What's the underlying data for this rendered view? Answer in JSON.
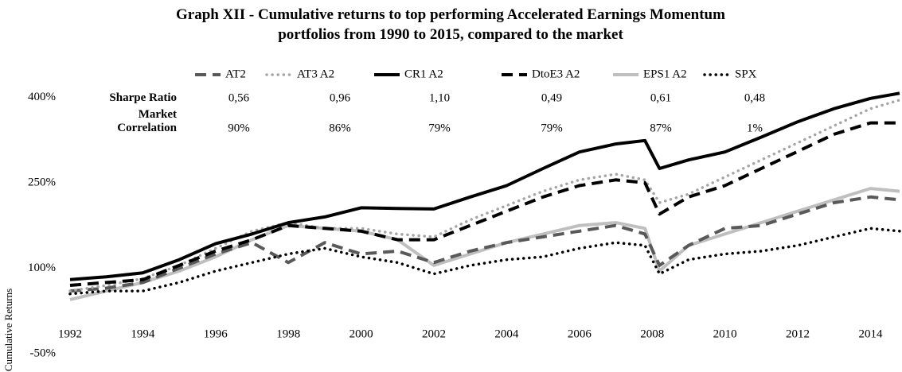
{
  "chart_data": {
    "type": "line",
    "title": "Graph XII - Cumulative returns to top performing Accelerated Earnings Momentum portfolios from 1990 to 2015, compared to the market",
    "y_label": "Cumulative Returns",
    "x": [
      1992,
      1993,
      1994,
      1995,
      1996,
      1997,
      1998,
      1999,
      2000,
      2001,
      2002,
      2003,
      2004,
      2005,
      2006,
      2007,
      2007.8,
      2008.2,
      2009,
      2010,
      2011,
      2012,
      2013,
      2014,
      2014.8
    ],
    "xlim": [
      1992,
      2014.8
    ],
    "xticks": [
      1992,
      1994,
      1996,
      1998,
      2000,
      2002,
      2004,
      2006,
      2008,
      2010,
      2012,
      2014
    ],
    "ylim": [
      -50,
      420
    ],
    "yticks": [
      {
        "value": -50,
        "label": "-50%"
      },
      {
        "value": 100,
        "label": "100%"
      },
      {
        "value": 250,
        "label": "250%"
      },
      {
        "value": 400,
        "label": "400%"
      }
    ],
    "grid": false,
    "series": [
      {
        "name": "AT2",
        "color": "#595959",
        "line_style": "dashed",
        "values": [
          60,
          65,
          75,
          100,
          125,
          145,
          110,
          145,
          125,
          130,
          110,
          130,
          145,
          155,
          165,
          175,
          160,
          105,
          140,
          170,
          175,
          195,
          215,
          225,
          220
        ]
      },
      {
        "name": "AT3 A2",
        "color": "#a6a6a6",
        "line_style": "dotted",
        "values": [
          60,
          70,
          82,
          105,
          135,
          165,
          180,
          170,
          170,
          160,
          155,
          185,
          210,
          235,
          255,
          265,
          255,
          215,
          230,
          260,
          290,
          320,
          350,
          380,
          395
        ]
      },
      {
        "name": "CR1 A2",
        "color": "#000000",
        "line_style": "solid",
        "values": [
          80,
          85,
          92,
          115,
          143,
          160,
          180,
          190,
          206,
          205,
          204,
          225,
          245,
          275,
          304,
          318,
          324,
          275,
          290,
          304,
          330,
          357,
          380,
          398,
          407
        ]
      },
      {
        "name": "DtoE3 A2",
        "color": "#000000",
        "line_style": "dashed",
        "values": [
          70,
          75,
          80,
          105,
          130,
          150,
          175,
          170,
          165,
          150,
          150,
          175,
          200,
          225,
          245,
          255,
          250,
          195,
          225,
          245,
          275,
          305,
          335,
          355,
          355
        ]
      },
      {
        "name": "EPS1 A2",
        "color": "#bfbfbf",
        "line_style": "solid",
        "values": [
          45,
          60,
          75,
          95,
          120,
          150,
          175,
          170,
          165,
          150,
          105,
          125,
          145,
          160,
          175,
          180,
          170,
          95,
          140,
          160,
          180,
          200,
          220,
          240,
          235
        ]
      },
      {
        "name": "SPX",
        "color": "#000000",
        "line_style": "dotted",
        "values": [
          55,
          60,
          60,
          75,
          95,
          110,
          125,
          135,
          120,
          110,
          90,
          105,
          115,
          120,
          135,
          145,
          140,
          90,
          115,
          125,
          130,
          140,
          155,
          170,
          165
        ]
      }
    ],
    "stats": [
      {
        "label": "Sharpe Ratio",
        "values": [
          "0,56",
          "0,96",
          "1,10",
          "0,49",
          "0,61",
          "0,48"
        ]
      },
      {
        "label": "Market Correlation",
        "values": [
          "90%",
          "86%",
          "79%",
          "79%",
          "87%",
          "1%"
        ]
      }
    ]
  }
}
